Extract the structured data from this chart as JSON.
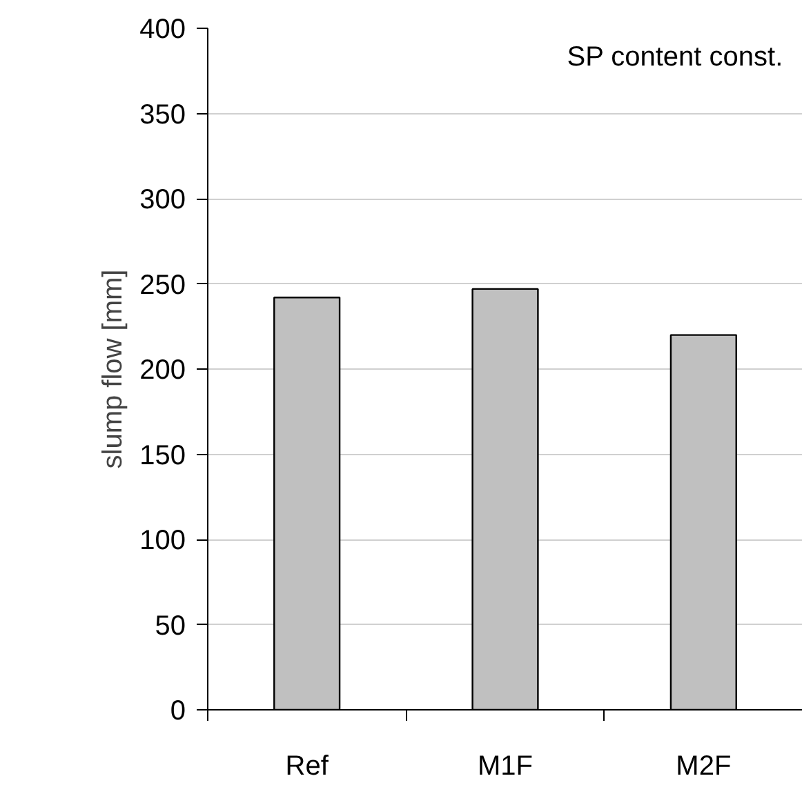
{
  "chart_data": {
    "type": "bar",
    "ylabel": "slump flow [mm]",
    "categories": [
      "Ref",
      "M1F",
      "M2F"
    ],
    "values": [
      242,
      247,
      220
    ],
    "color": "#c0c0c0",
    "ylim": [
      0,
      400
    ],
    "yticks": [
      0,
      50,
      100,
      150,
      200,
      250,
      300,
      350,
      400
    ],
    "grid": "y",
    "annotations": [
      "SP content const."
    ]
  }
}
